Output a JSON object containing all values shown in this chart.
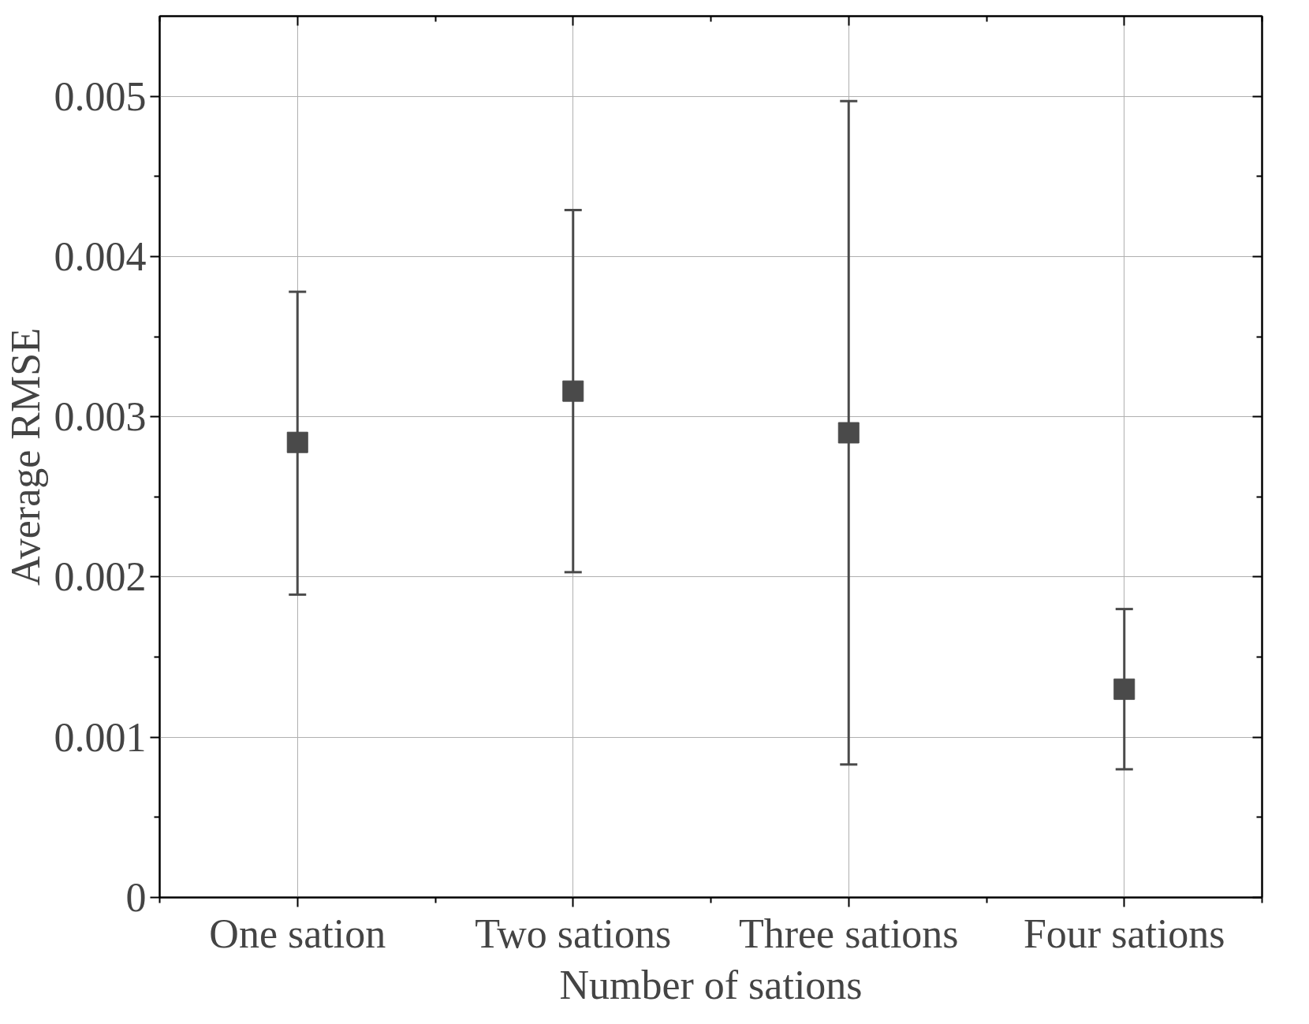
{
  "chart_data": {
    "type": "scatter",
    "xlabel": "Number of sations",
    "ylabel": "Average RMSE",
    "categories": [
      "One sation",
      "Two sations",
      "Three sations",
      "Four sations"
    ],
    "series": [
      {
        "color": "#4a4a4a",
        "values": [
          0.00284,
          0.00316,
          0.0029,
          0.0013
        ],
        "errors": [
          [
            0.00189,
            0.00378
          ],
          [
            0.00203,
            0.00429
          ],
          [
            0.00083,
            0.00497
          ],
          [
            0.0008,
            0.0018
          ]
        ]
      }
    ],
    "ylim": [
      0,
      0.0055
    ],
    "yticks": [
      0,
      0.001,
      0.002,
      0.003,
      0.004,
      0.005
    ],
    "grid": true,
    "marker": "square"
  }
}
